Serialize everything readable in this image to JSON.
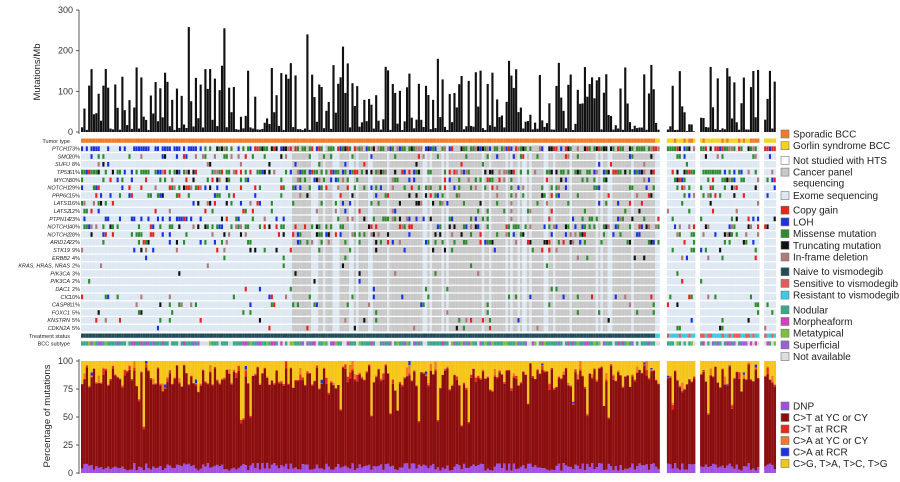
{
  "chart_data": [
    {
      "type": "bar",
      "panel": "mutation-burden",
      "ylabel": "Mutations/Mb",
      "ylim": [
        0,
        300
      ],
      "yticks": [
        0,
        100,
        200,
        300
      ],
      "sample_count": 293,
      "highlighted_values": [
        258,
        255,
        240,
        210,
        180,
        175,
        170,
        165,
        160,
        150
      ],
      "typical_range": [
        5,
        160
      ]
    },
    {
      "type": "heatmap",
      "panel": "oncoprint",
      "rows": [
        {
          "label": "Tumor type",
          "pct": ""
        },
        {
          "label": "PTCH1",
          "pct": "73%"
        },
        {
          "label": "SMO",
          "pct": "20%"
        },
        {
          "label": "SUFU",
          "pct": "8%"
        },
        {
          "label": "TP53",
          "pct": "61%"
        },
        {
          "label": "MYCN",
          "pct": "30%"
        },
        {
          "label": "NOTCH1",
          "pct": "29%"
        },
        {
          "label": "PPP6C",
          "pct": "15%"
        },
        {
          "label": "LATS1",
          "pct": "16%"
        },
        {
          "label": "LATS2",
          "pct": "12%"
        },
        {
          "label": "PTPN14",
          "pct": "23%"
        },
        {
          "label": "NOTCH1",
          "pct": "40%"
        },
        {
          "label": "NOTCH2",
          "pct": "28%"
        },
        {
          "label": "ARID1A",
          "pct": "22%"
        },
        {
          "label": "STK19",
          "pct": "9%"
        },
        {
          "label": "ERBB2",
          "pct": "4%"
        },
        {
          "label": "KRAS, HRAS, NRAS",
          "pct": "2%"
        },
        {
          "label": "PIK3CA",
          "pct": "3%"
        },
        {
          "label": "PIK3CA",
          "pct": "2%"
        },
        {
          "label": "DAC1",
          "pct": "2%"
        },
        {
          "label": "CIC",
          "pct": "10%"
        },
        {
          "label": "CASP8",
          "pct": "11%"
        },
        {
          "label": "FOXC1",
          "pct": "5%"
        },
        {
          "label": "KNSTRN",
          "pct": "5%"
        },
        {
          "label": "CDKN2A",
          "pct": "5%"
        },
        {
          "label": "Treatment status",
          "pct": ""
        },
        {
          "label": "BCC subtype",
          "pct": ""
        }
      ],
      "legend": [
        {
          "label": "Sporadic BCC",
          "color": "#f07c2a"
        },
        {
          "label": "Gorlin syndrome BCC",
          "color": "#f5d21e"
        },
        {
          "label": "Not studied with HTS",
          "color": "#ffffff"
        },
        {
          "label": "Cancer panel sequencing",
          "color": "#c8c8c8"
        },
        {
          "label": "Exome sequencing",
          "color": "#dde8f3"
        },
        {
          "label": "Copy gain",
          "color": "#e8221e"
        },
        {
          "label": "LOH",
          "color": "#1a33e0"
        },
        {
          "label": "Missense mutation",
          "color": "#2e8b2e"
        },
        {
          "label": "Truncating mutation",
          "color": "#111111"
        },
        {
          "label": "In-frame deletion",
          "color": "#b07a7a"
        },
        {
          "label": "Naive to vismodegib",
          "color": "#1f4e5a"
        },
        {
          "label": "Sensitive to vismodegib",
          "color": "#e85a5a"
        },
        {
          "label": "Resistant to vismodegib",
          "color": "#3ec9e6"
        },
        {
          "label": "Nodular",
          "color": "#3aa88a"
        },
        {
          "label": "Morpheaform",
          "color": "#d040c0"
        },
        {
          "label": "Metatypical",
          "color": "#7fbf3f"
        },
        {
          "label": "Superficial",
          "color": "#9a60d8"
        },
        {
          "label": "Not available",
          "color": "#dddddd"
        }
      ]
    },
    {
      "type": "bar",
      "panel": "mutation-spectrum",
      "stacked": true,
      "ylabel": "Percentage of mutations",
      "ylim": [
        0,
        100
      ],
      "yticks": [
        0,
        25,
        50,
        75,
        100
      ],
      "series": [
        {
          "name": "DNP",
          "color": "#a050e0",
          "typical_pct": 5
        },
        {
          "name": "C>T at YC or CY",
          "color": "#8b0d0d",
          "typical_pct": 80
        },
        {
          "name": "C>T at RCR",
          "color": "#e82a1a",
          "typical_pct": 3
        },
        {
          "name": "C>A at YC or CY",
          "color": "#f07a2a",
          "typical_pct": 2
        },
        {
          "name": "C>A at RCR",
          "color": "#1a33e0",
          "typical_pct": 1
        },
        {
          "name": "C>G, T>A, T>C, T>G",
          "color": "#f5c518",
          "typical_pct": 9
        }
      ]
    }
  ]
}
